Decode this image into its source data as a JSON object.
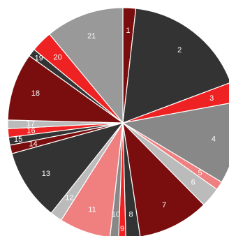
{
  "chart_data": {
    "type": "pie",
    "title": "",
    "legend": "none",
    "slices": [
      {
        "label": "1",
        "value": 1.8,
        "color": "#7a0e0e"
      },
      {
        "label": "2",
        "value": 17.5,
        "color": "#333333"
      },
      {
        "label": "3",
        "value": 2.8,
        "color": "#ee2222"
      },
      {
        "label": "4",
        "value": 11.5,
        "color": "#888888"
      },
      {
        "label": "5",
        "value": 1.2,
        "color": "#f08080"
      },
      {
        "label": "6",
        "value": 2.8,
        "color": "#bbbbbb"
      },
      {
        "label": "7",
        "value": 10.0,
        "color": "#7a0e0e"
      },
      {
        "label": "8",
        "value": 2.0,
        "color": "#333333"
      },
      {
        "label": "9",
        "value": 1.0,
        "color": "#ee2222"
      },
      {
        "label": "10",
        "value": 1.2,
        "color": "#888888"
      },
      {
        "label": "11",
        "value": 7.2,
        "color": "#f08080"
      },
      {
        "label": "12",
        "value": 1.7,
        "color": "#bbbbbb"
      },
      {
        "label": "13",
        "value": 10.0,
        "color": "#333333"
      },
      {
        "label": "14",
        "value": 1.2,
        "color": "#7a0e0e"
      },
      {
        "label": "15",
        "value": 1.1,
        "color": "#333333"
      },
      {
        "label": "16",
        "value": 1.2,
        "color": "#ee2222"
      },
      {
        "label": "17",
        "value": 1.2,
        "color": "#bbbbbb"
      },
      {
        "label": "18",
        "value": 9.5,
        "color": "#7a0e0e"
      },
      {
        "label": "19",
        "value": 1.1,
        "color": "#333333"
      },
      {
        "label": "20",
        "value": 3.0,
        "color": "#ee2222"
      },
      {
        "label": "21",
        "value": 11.0,
        "color": "#999999"
      }
    ]
  }
}
